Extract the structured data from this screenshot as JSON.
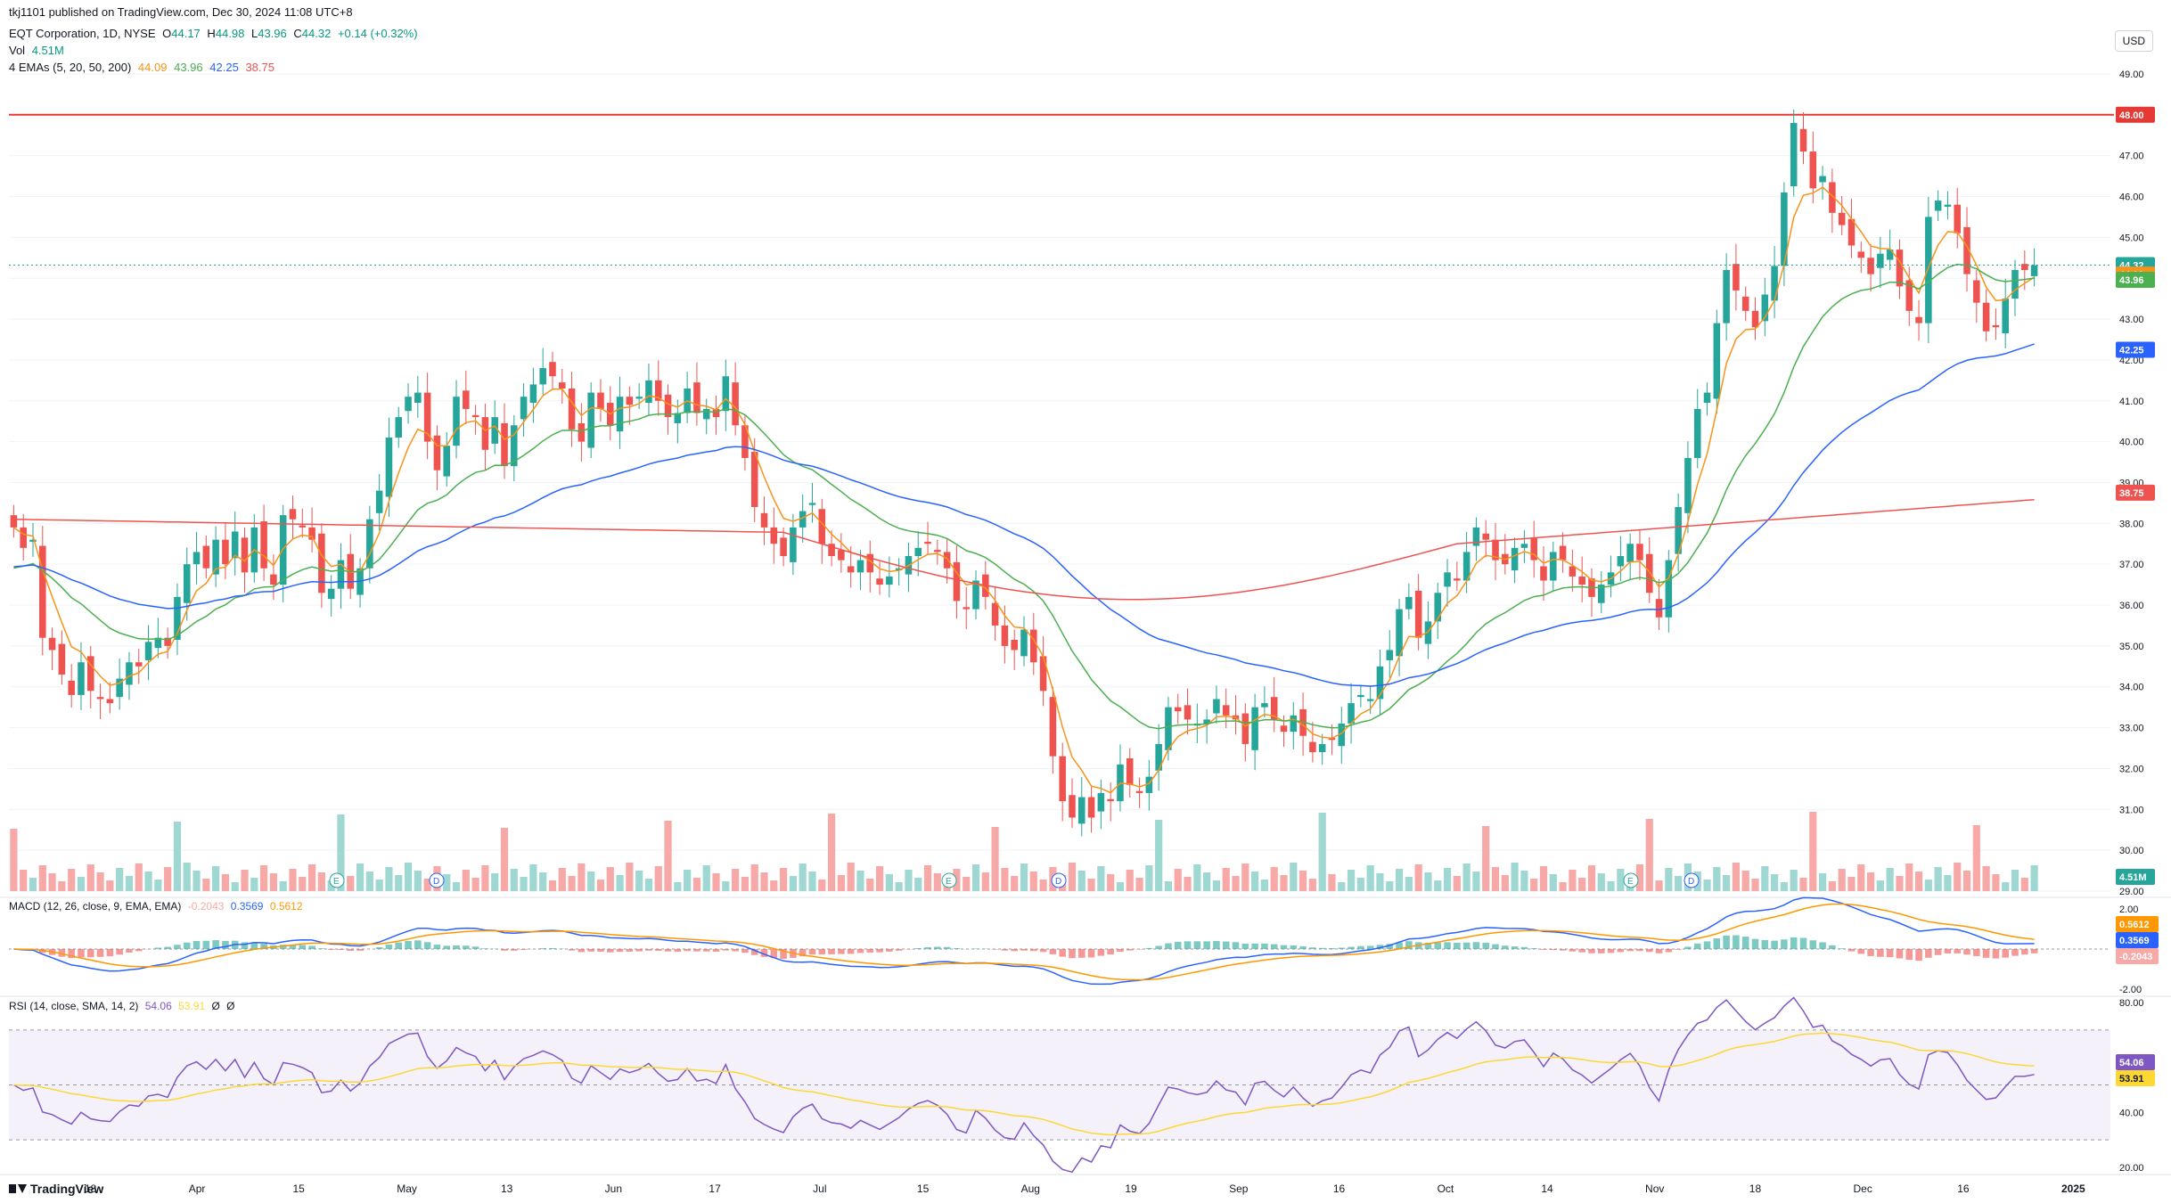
{
  "header": {
    "published": "tkj1101 published on TradingView.com, Dec 30, 2024 11:08 UTC+8",
    "symbol": "EQT Corporation, 1D, NYSE",
    "o_label": "O",
    "o_val": "44.17",
    "h_label": "H",
    "h_val": "44.98",
    "l_label": "L",
    "l_val": "43.96",
    "c_label": "C",
    "c_val": "44.32",
    "change": "+0.14 (+0.32%)",
    "vol_label": "Vol",
    "vol_val": "4.51M",
    "ema_label": "4 EMAs (5, 20, 50, 200)",
    "ema_vals": [
      "44.09",
      "43.96",
      "42.25",
      "38.75"
    ],
    "macd_label": "MACD (12, 26, close, 9, EMA, EMA)",
    "macd_vals": [
      "-0.2043",
      "0.3569",
      "0.5612"
    ],
    "rsi_label": "RSI (14, close, SMA, 14, 2)",
    "rsi_vals": [
      "54.06",
      "53.91",
      "Ø",
      "Ø"
    ]
  },
  "currency": "USD",
  "brand": "TradingView",
  "colors": {
    "up": "#26a69a",
    "down": "#ef5350",
    "volUp": "#9fd8d2",
    "volDown": "#f7a9a7",
    "ema5": "#f7931a",
    "ema20": "#4caf50",
    "ema50": "#2962ff",
    "ema200": "#ef5350",
    "hline": "#e53935",
    "macd": "#2962ff",
    "signal": "#ff9800",
    "rsi": "#7e57c2",
    "rsiMa": "#fdd835"
  },
  "chart_data": [
    {
      "type": "candlestick",
      "title": "EQT Corporation, 1D, NYSE",
      "ylim": [
        29.0,
        49.5
      ],
      "y_ticks": [
        "49.00",
        "48.00",
        "47.00",
        "46.00",
        "45.00",
        "44.00",
        "43.00",
        "42.00",
        "41.00",
        "40.00",
        "39.00",
        "38.00",
        "37.00",
        "36.00",
        "35.00",
        "34.00",
        "33.00",
        "32.00",
        "31.00",
        "30.00",
        "29.00"
      ],
      "x_ticks": [
        "18",
        "Apr",
        "15",
        "May",
        "13",
        "Jun",
        "17",
        "Jul",
        "15",
        "Aug",
        "19",
        "Sep",
        "16",
        "Oct",
        "14",
        "Nov",
        "18",
        "Dec",
        "16",
        "2025"
      ],
      "horizontal_line": 48.0,
      "last_price": 44.32,
      "price_labels": [
        "48.00",
        "44.32",
        "44.09",
        "43.96",
        "42.25",
        "38.75"
      ],
      "ohlc_close": [
        37.9,
        37.4,
        37.6,
        35.2,
        34.9,
        34.3,
        33.8,
        34.6,
        33.9,
        33.7,
        33.6,
        34.2,
        34.6,
        34.5,
        35.1,
        35.2,
        35.0,
        36.2,
        37.0,
        37.3,
        36.9,
        37.6,
        37.0,
        37.8,
        36.8,
        37.9,
        36.9,
        36.5,
        38.2,
        38.1,
        37.9,
        37.6,
        36.3,
        36.4,
        37.1,
        36.4,
        36.9,
        38.1,
        38.8,
        40.1,
        40.6,
        41.1,
        41.2,
        40.0,
        39.3,
        39.9,
        41.1,
        40.8,
        40.6,
        39.8,
        40.6,
        39.4,
        40.4,
        41.1,
        41.4,
        41.8,
        41.6,
        41.3,
        40.3,
        40.0,
        41.2,
        40.8,
        40.4,
        41.1,
        40.9,
        41.1,
        41.5,
        41.0,
        40.6,
        40.7,
        41.3,
        40.7,
        40.8,
        40.6,
        41.6,
        40.4,
        39.6,
        38.4,
        37.9,
        37.5,
        37.2,
        37.9,
        38.3,
        38.5,
        37.5,
        37.2,
        37.1,
        36.8,
        37.1,
        36.8,
        36.5,
        36.7,
        36.9,
        37.2,
        37.4,
        37.5,
        37.3,
        36.9,
        36.1,
        35.9,
        36.6,
        36.2,
        35.5,
        35.0,
        34.9,
        35.4,
        34.6,
        33.9,
        32.3,
        31.2,
        30.8,
        31.3,
        30.8,
        31.4,
        31.2,
        32.1,
        31.6,
        31.4,
        31.8,
        32.6,
        33.5,
        33.4,
        33.2,
        33.1,
        33.2,
        33.7,
        33.3,
        33.2,
        32.6,
        33.5,
        33.6,
        33.2,
        32.9,
        33.3,
        32.8,
        32.4,
        32.6,
        32.7,
        33.1,
        33.6,
        33.8,
        33.7,
        34.5,
        34.9,
        35.9,
        36.2,
        35.2,
        35.6,
        36.3,
        36.8,
        36.6,
        37.3,
        37.9,
        37.6,
        37.1,
        37.0,
        37.4,
        37.5,
        37.1,
        36.6,
        37.3,
        37.1,
        36.7,
        36.5,
        36.2,
        36.5,
        36.8,
        37.2,
        37.5,
        37.1,
        36.3,
        35.7,
        37.1,
        38.4,
        39.6,
        40.8,
        41.2,
        42.9,
        44.2,
        43.7,
        43.2,
        42.8,
        43.6,
        44.3,
        46.1,
        47.8,
        47.1,
        46.2,
        46.5,
        45.6,
        45.3,
        44.8,
        44.5,
        44.1,
        44.6,
        44.7,
        43.8,
        43.2,
        42.9,
        45.5,
        45.9,
        45.8,
        45.1,
        44.1,
        43.4,
        42.7,
        42.8,
        43.5,
        44.2,
        44.2,
        44.32
      ],
      "ema5_last": 44.09,
      "ema20_last": 43.96,
      "ema50_last": 42.25,
      "ema200_last": 38.75
    },
    {
      "type": "bar",
      "title": "Vol",
      "last_value": "4.51M",
      "events": [
        "E",
        "D",
        "E",
        "D",
        "E",
        "D"
      ]
    },
    {
      "type": "line",
      "title": "MACD (12, 26, close, 9, EMA, EMA)",
      "ylim": [
        -2.0,
        2.0
      ],
      "y_ticks": [
        "2.00",
        "-2.00"
      ],
      "series": [
        {
          "name": "MACD",
          "last": 0.3569
        },
        {
          "name": "Signal",
          "last": 0.5612
        },
        {
          "name": "Histogram",
          "last": -0.2043
        }
      ]
    },
    {
      "type": "line",
      "title": "RSI (14, close, SMA, 14, 2)",
      "ylim": [
        20,
        80
      ],
      "y_ticks": [
        "80.00",
        "60.00",
        "40.00",
        "20.00"
      ],
      "bands": [
        70,
        50,
        30
      ],
      "series": [
        {
          "name": "RSI",
          "last": 54.06
        },
        {
          "name": "RSI-based MA",
          "last": 53.91
        }
      ]
    }
  ]
}
